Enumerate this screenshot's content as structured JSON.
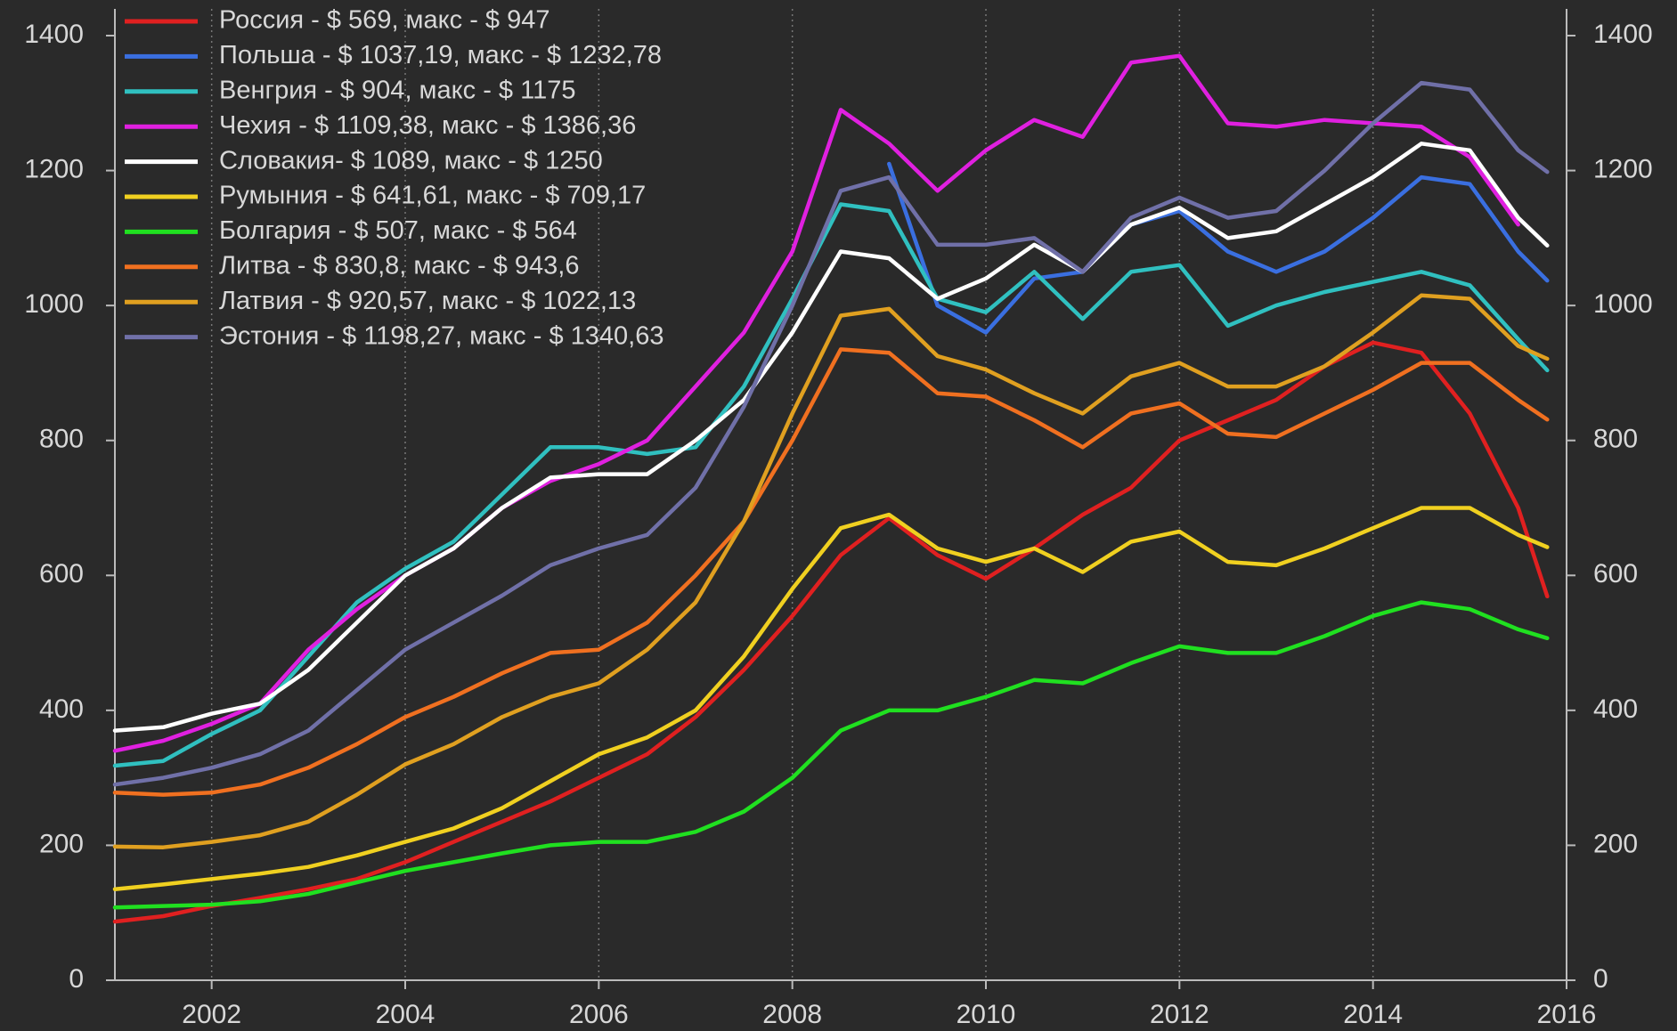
{
  "chart_data": {
    "type": "line",
    "x": [
      2001,
      2001.5,
      2002,
      2002.5,
      2003,
      2003.5,
      2004,
      2004.5,
      2005,
      2005.5,
      2006,
      2006.5,
      2007,
      2007.5,
      2008,
      2008.5,
      2009,
      2009.5,
      2010,
      2010.5,
      2011,
      2011.5,
      2012,
      2012.5,
      2013,
      2013.5,
      2014,
      2014.5,
      2015,
      2015.5,
      2015.8
    ],
    "series": [
      {
        "name": "Россия - $ 569, макс - $ 947",
        "color": "#e02020",
        "values": [
          87,
          95,
          110,
          122,
          135,
          150,
          175,
          205,
          235,
          265,
          300,
          335,
          390,
          460,
          540,
          630,
          685,
          630,
          595,
          640,
          690,
          730,
          800,
          830,
          860,
          910,
          945,
          930,
          840,
          700,
          569
        ]
      },
      {
        "name": "Польша - $ 1037,19, макс - $ 1232,78",
        "color": "#3a6fe0",
        "values": [
          null,
          null,
          null,
          null,
          null,
          null,
          null,
          null,
          null,
          null,
          null,
          null,
          null,
          null,
          null,
          null,
          1210,
          1000,
          960,
          1040,
          1050,
          1120,
          1140,
          1080,
          1050,
          1080,
          1130,
          1190,
          1180,
          1080,
          1037
        ]
      },
      {
        "name": "Венгрия - $ 904, макс - $ 1175",
        "color": "#30c0c0",
        "values": [
          318,
          325,
          365,
          400,
          480,
          560,
          610,
          650,
          720,
          790,
          790,
          780,
          790,
          880,
          1010,
          1150,
          1140,
          1010,
          990,
          1050,
          980,
          1050,
          1060,
          970,
          1000,
          1020,
          1035,
          1050,
          1030,
          950,
          904
        ]
      },
      {
        "name": "Чехия - $ 1109,38, макс - $ 1386,36",
        "color": "#e020e0",
        "values": [
          340,
          355,
          380,
          410,
          490,
          550,
          600,
          640,
          700,
          740,
          765,
          800,
          880,
          960,
          1080,
          1290,
          1240,
          1170,
          1230,
          1275,
          1250,
          1360,
          1370,
          1270,
          1265,
          1275,
          1270,
          1265,
          1220,
          1120,
          null
        ]
      },
      {
        "name": "Словакия- $ 1089, макс - $ 1250",
        "color": "#ffffff",
        "values": [
          370,
          375,
          395,
          410,
          460,
          530,
          600,
          640,
          700,
          745,
          750,
          750,
          800,
          860,
          960,
          1080,
          1070,
          1010,
          1040,
          1090,
          1050,
          1120,
          1145,
          1100,
          1110,
          1150,
          1190,
          1240,
          1230,
          1130,
          1089
        ]
      },
      {
        "name": "Румыния - $ 641,61, макс - $ 709,17",
        "color": "#f0d020",
        "values": [
          135,
          142,
          150,
          158,
          168,
          185,
          205,
          225,
          255,
          295,
          335,
          360,
          400,
          480,
          580,
          670,
          690,
          640,
          620,
          640,
          605,
          650,
          665,
          620,
          615,
          640,
          670,
          700,
          700,
          660,
          642
        ]
      },
      {
        "name": "Болгария - $ 507, макс - $ 564",
        "color": "#20e020",
        "values": [
          108,
          110,
          112,
          117,
          128,
          145,
          162,
          175,
          188,
          200,
          205,
          205,
          220,
          250,
          300,
          370,
          400,
          400,
          420,
          445,
          440,
          470,
          495,
          485,
          485,
          510,
          540,
          560,
          550,
          520,
          507
        ]
      },
      {
        "name": "Литва  - $ 830,8, макс - $ 943,6",
        "color": "#f07020",
        "values": [
          278,
          275,
          278,
          290,
          315,
          350,
          390,
          420,
          455,
          485,
          490,
          530,
          600,
          680,
          800,
          935,
          930,
          870,
          865,
          830,
          790,
          840,
          855,
          810,
          805,
          840,
          875,
          915,
          915,
          860,
          831
        ]
      },
      {
        "name": "Латвия  - $ 920,57, макс - $ 1022,13",
        "color": "#e0a020",
        "values": [
          198,
          197,
          205,
          215,
          235,
          275,
          320,
          350,
          390,
          420,
          440,
          490,
          560,
          680,
          840,
          985,
          995,
          925,
          905,
          870,
          840,
          895,
          915,
          880,
          880,
          910,
          960,
          1015,
          1010,
          940,
          921
        ]
      },
      {
        "name": "Эстония - $ 1198,27, макс - $ 1340,63",
        "color": "#7070a8",
        "values": [
          290,
          300,
          315,
          335,
          370,
          430,
          490,
          530,
          570,
          615,
          640,
          660,
          730,
          850,
          1000,
          1170,
          1190,
          1090,
          1090,
          1100,
          1050,
          1130,
          1160,
          1130,
          1140,
          1200,
          1270,
          1330,
          1320,
          1230,
          1198
        ]
      }
    ],
    "xlim": [
      2001,
      2016
    ],
    "xticks": [
      2002,
      2004,
      2006,
      2008,
      2010,
      2012,
      2014,
      2016
    ],
    "ylim": [
      0,
      1400
    ],
    "yticks": [
      0,
      200,
      400,
      600,
      800,
      1000,
      1200,
      1400
    ],
    "y2lim": [
      0,
      1400
    ],
    "y2ticks": [
      0,
      200,
      400,
      600,
      800,
      1000,
      1200,
      1400
    ],
    "grid": "x",
    "legend": "upper left"
  }
}
